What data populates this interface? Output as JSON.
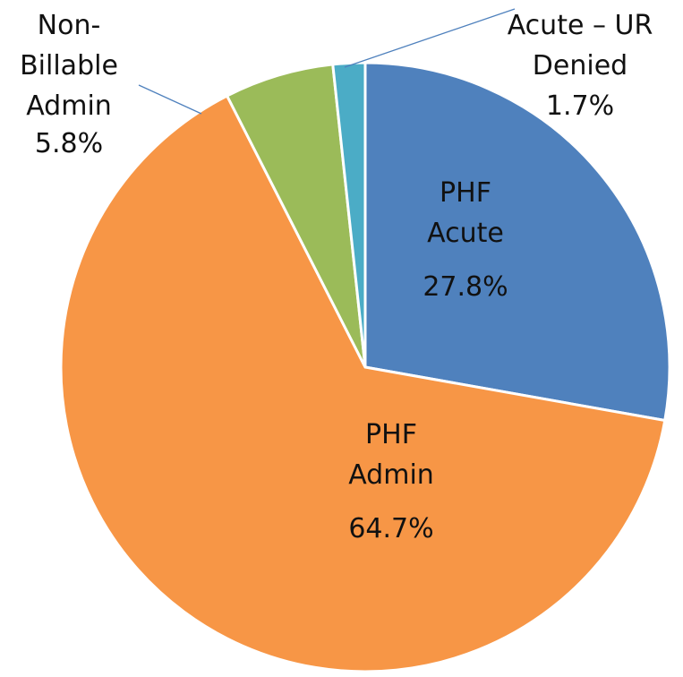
{
  "chart_data": {
    "type": "pie",
    "categories": [
      "PHF\nAcute",
      "PHF\nAdmin",
      "Non-\nBillable\nAdmin",
      "Acute – UR\nDenied"
    ],
    "values": [
      27.8,
      64.7,
      5.8,
      1.7
    ],
    "value_labels": [
      "27.8%",
      "64.7%",
      "5.8%",
      "1.7%"
    ],
    "colors": [
      "#4f81bd",
      "#f79646",
      "#9bbb59",
      "#4bacc6"
    ]
  }
}
